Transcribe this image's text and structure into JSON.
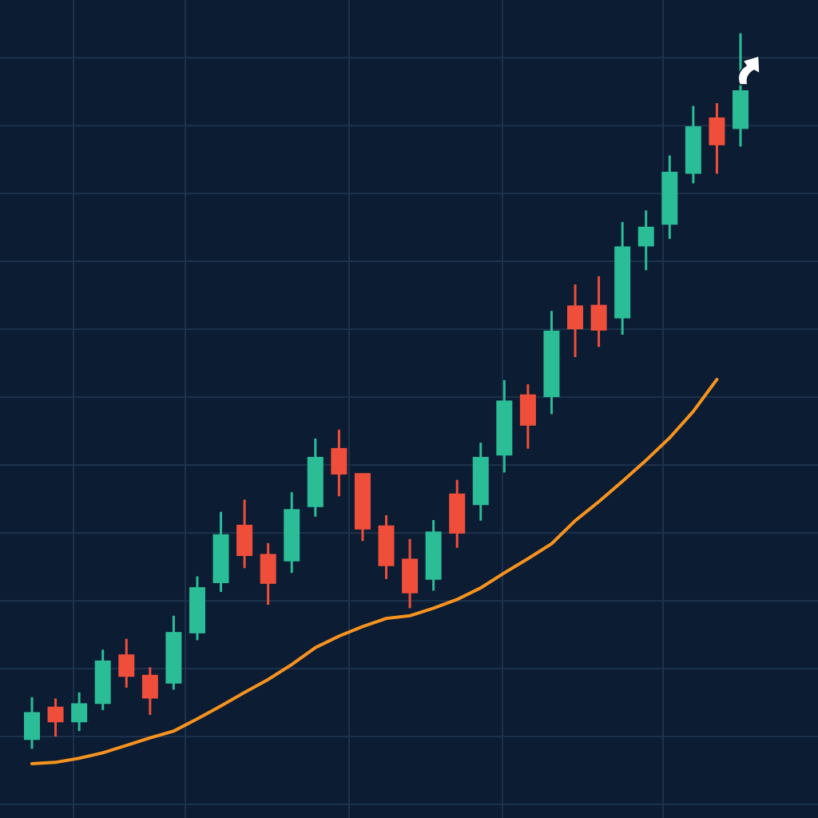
{
  "chart_data": {
    "type": "candlestick",
    "categories": [
      null,
      null,
      null,
      null,
      null,
      null,
      null,
      null,
      null,
      null,
      null,
      null,
      null,
      null,
      null,
      null,
      null,
      null,
      null,
      null,
      null,
      null,
      null,
      null,
      null,
      null,
      null,
      null,
      null,
      null,
      null
    ],
    "open": [
      9.5,
      14.4,
      12.1,
      14.8,
      22.1,
      19.1,
      17.8,
      25.2,
      32.6,
      41.2,
      36.9,
      35.8,
      43.8,
      52.5,
      48.8,
      41.1,
      36.2,
      33.1,
      45.8,
      44.1,
      51.4,
      60.4,
      60.0,
      73.5,
      73.6,
      71.6,
      82.2,
      85.4,
      92.9,
      101.2,
      99.5
    ],
    "high": [
      15.8,
      15.6,
      16.5,
      22.8,
      24.4,
      20.2,
      27.8,
      33.6,
      43.1,
      44.9,
      38.5,
      46.0,
      53.9,
      55.2,
      48.8,
      42.6,
      39.1,
      41.9,
      47.8,
      53.3,
      62.5,
      61.9,
      72.7,
      76.6,
      77.8,
      85.8,
      87.5,
      95.6,
      102.9,
      103.3,
      113.6
    ],
    "low": [
      8.2,
      10.0,
      10.8,
      13.9,
      17.2,
      13.2,
      16.9,
      24.2,
      31.3,
      34.8,
      29.4,
      34.1,
      42.4,
      45.4,
      38.8,
      33.2,
      28.9,
      31.5,
      37.8,
      41.8,
      48.9,
      52.4,
      57.5,
      65.9,
      67.4,
      69.2,
      78.7,
      83.3,
      91.5,
      92.9,
      96.9
    ],
    "close": [
      13.6,
      12.1,
      14.9,
      21.2,
      18.8,
      15.6,
      25.4,
      32.0,
      39.8,
      36.6,
      32.5,
      43.5,
      51.2,
      48.6,
      40.5,
      35.1,
      31.1,
      40.2,
      39.9,
      51.2,
      59.5,
      55.8,
      69.8,
      70.0,
      69.8,
      82.2,
      85.1,
      93.2,
      99.9,
      97.1,
      105.2
    ],
    "up_color": "#2bbd96",
    "down_color": "#ef4f3a",
    "line": {
      "color": "#f7931e",
      "values": [
        6.0,
        6.2,
        6.8,
        7.6,
        8.7,
        9.8,
        10.8,
        12.6,
        14.5,
        16.5,
        18.4,
        20.6,
        23.1,
        24.8,
        26.2,
        27.4,
        27.8,
        28.9,
        30.2,
        31.9,
        34.1,
        36.2,
        38.4,
        41.8,
        44.6,
        47.6,
        50.7,
        54.0,
        57.9,
        62.6,
        null
      ]
    },
    "ylim": [
      -2,
      118.5
    ],
    "yticks": [
      0,
      10,
      20,
      30,
      40,
      50,
      60,
      70,
      80,
      90,
      100,
      110
    ],
    "grid": true
  }
}
